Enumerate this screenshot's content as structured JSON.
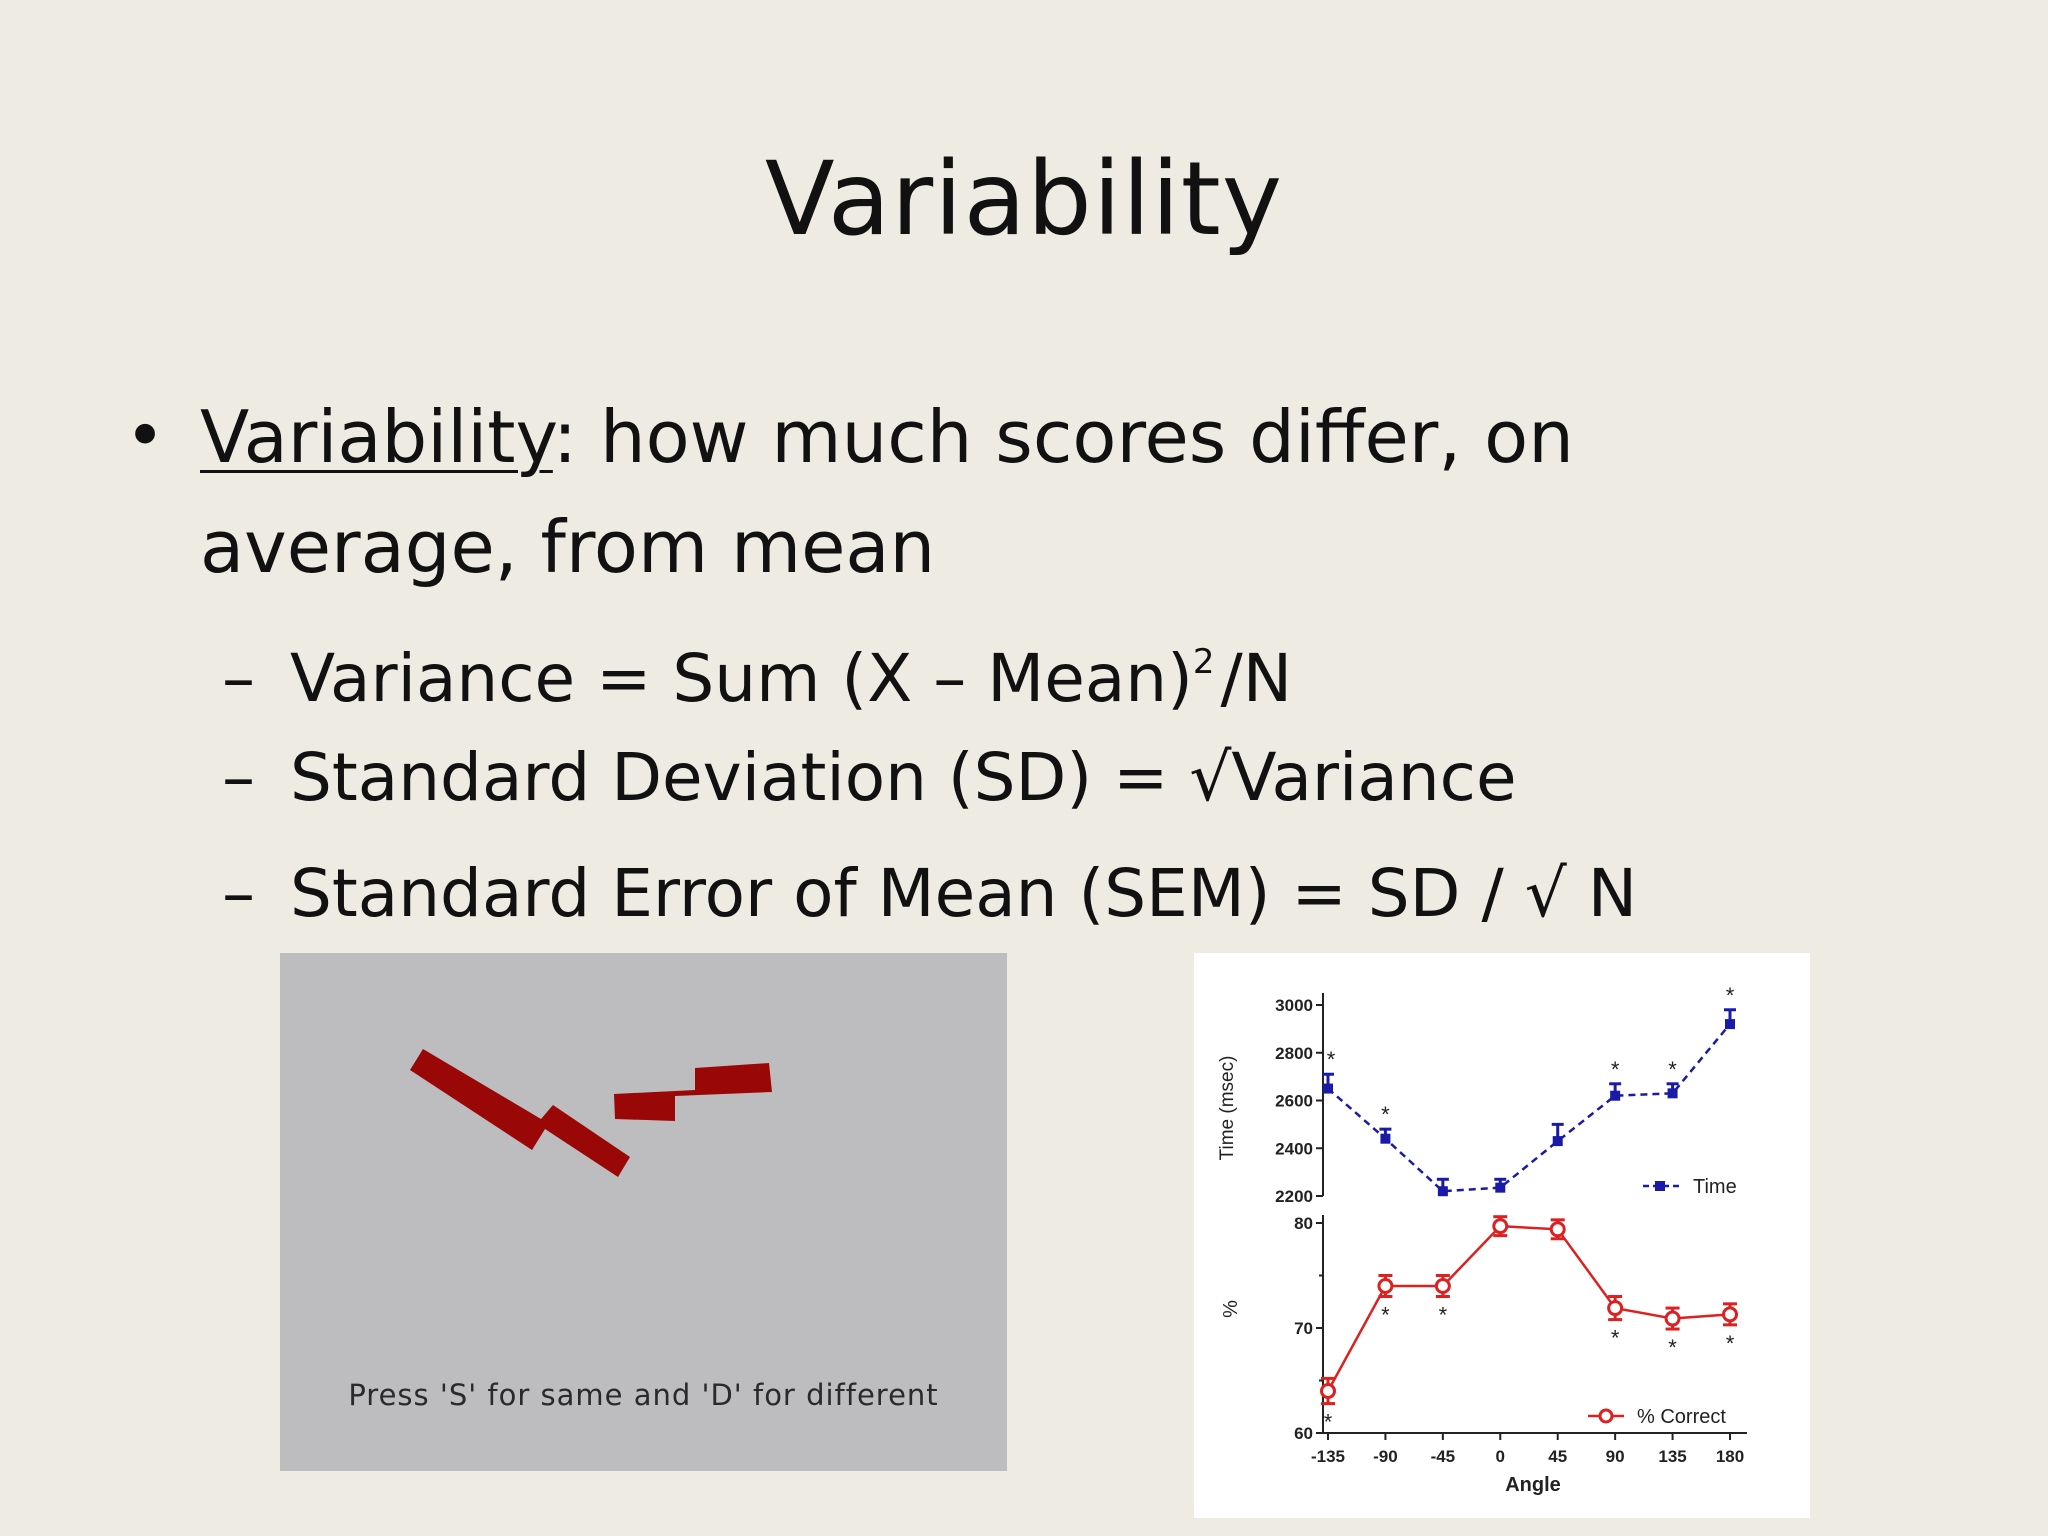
{
  "slide": {
    "title": "Variability",
    "bullet": {
      "symbol": "•",
      "term": "Variability",
      "definition": ": how much scores differ, on average, from mean"
    },
    "sub_bullets": [
      {
        "dash": "–",
        "text": "Variance = Sum (X – Mean)",
        "sup": "2",
        "tail": "/N"
      },
      {
        "dash": "–",
        "text": "Standard Deviation (SD) = √Variance"
      },
      {
        "dash": "–",
        "text": "Standard Error of Mean (SEM) = SD / √ N"
      }
    ]
  },
  "stimulus": {
    "instruction": "Press 'S' for same and 'D' for different",
    "shape_color": "#9a0707",
    "background_color": "#bdbdbf"
  },
  "chart_data": [
    {
      "type": "line",
      "title": "",
      "xlabel": "Angle",
      "ylabel": "Time (msec)",
      "x": [
        -135,
        -90,
        -45,
        0,
        45,
        90,
        135,
        180
      ],
      "ylim": [
        2200,
        3000
      ],
      "yticks": [
        2200,
        2400,
        2600,
        2800,
        3000
      ],
      "series": [
        {
          "name": "Time",
          "color": "#1a1aa8",
          "line_style": "dashed",
          "marker": "square",
          "values": [
            2650,
            2440,
            2220,
            2235,
            2430,
            2620,
            2630,
            2920
          ],
          "errors": [
            60,
            40,
            50,
            35,
            70,
            50,
            40,
            60
          ],
          "significant": [
            true,
            true,
            false,
            false,
            false,
            true,
            true,
            true
          ]
        }
      ],
      "legend_position": "right"
    },
    {
      "type": "line",
      "title": "",
      "xlabel": "Angle",
      "ylabel": "%",
      "x": [
        -135,
        -90,
        -45,
        0,
        45,
        90,
        135,
        180
      ],
      "xticks": [
        "-135",
        "-90",
        "-45",
        "0",
        "45",
        "90",
        "135",
        "180"
      ],
      "ylim": [
        60,
        80
      ],
      "yticks": [
        60,
        70,
        80
      ],
      "series": [
        {
          "name": "% Correct",
          "color": "#dd2020",
          "line_style": "solid",
          "marker": "open-circle",
          "values": [
            64,
            74,
            74,
            79.7,
            79.4,
            71.9,
            70.9,
            71.3
          ],
          "errors": [
            1.2,
            1.0,
            1.0,
            0.9,
            0.9,
            1.1,
            1.0,
            1.0
          ],
          "significant": [
            true,
            true,
            true,
            false,
            false,
            true,
            true,
            true
          ]
        }
      ],
      "legend_position": "bottom-right",
      "significance_marker": "*"
    }
  ]
}
